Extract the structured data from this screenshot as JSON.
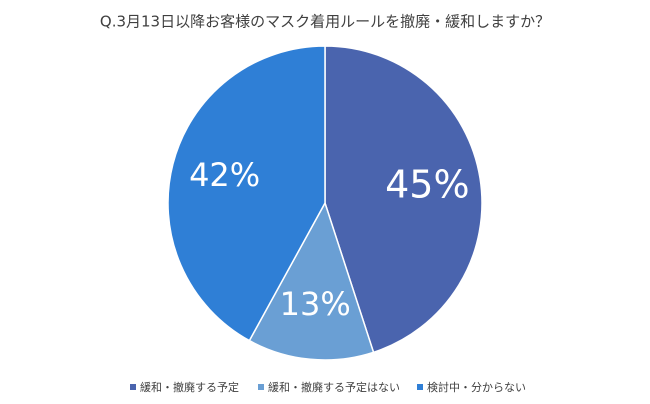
{
  "chart_data": {
    "type": "pie",
    "title": "Q.3月13日以降お客様のマスク着用ルールを撤廃・緩和しますか？",
    "categories": [
      "緩和・撤廃する予定",
      "緩和・撤廃する予定はない",
      "検討中・分からない"
    ],
    "values": [
      45,
      13,
      42
    ],
    "value_labels": [
      "45%",
      "13%",
      "42%"
    ],
    "colors": [
      "#4a64ae",
      "#6a9fd4",
      "#2f7fd6"
    ],
    "legend": "bottom"
  }
}
